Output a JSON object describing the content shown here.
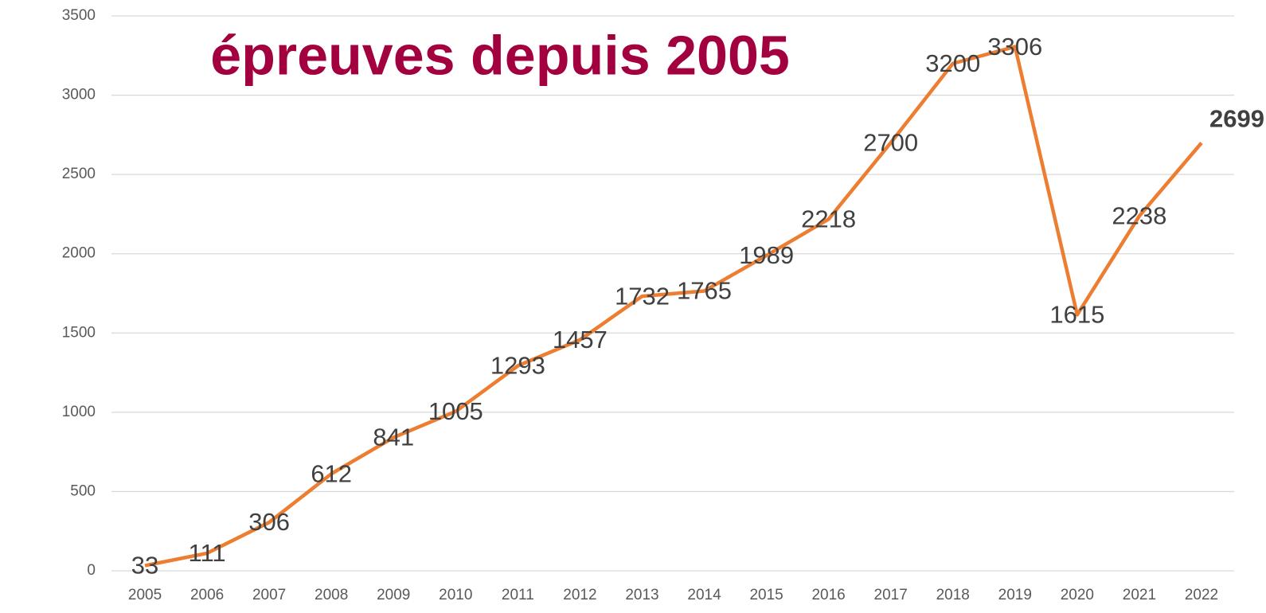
{
  "chart_data": {
    "type": "line",
    "title": "épreuves depuis 2005",
    "categories": [
      "2005",
      "2006",
      "2007",
      "2008",
      "2009",
      "2010",
      "2011",
      "2012",
      "2013",
      "2014",
      "2015",
      "2016",
      "2017",
      "2018",
      "2019",
      "2020",
      "2021",
      "2022"
    ],
    "values": [
      33,
      111,
      306,
      612,
      841,
      1005,
      1293,
      1457,
      1732,
      1765,
      1989,
      2218,
      2700,
      3200,
      3306,
      1615,
      2238,
      2699
    ],
    "color": "#ed7d31",
    "ylim": [
      0,
      3500
    ],
    "yticks": [
      0,
      500,
      1000,
      1500,
      2000,
      2500,
      3000,
      3500
    ],
    "grid": true
  }
}
